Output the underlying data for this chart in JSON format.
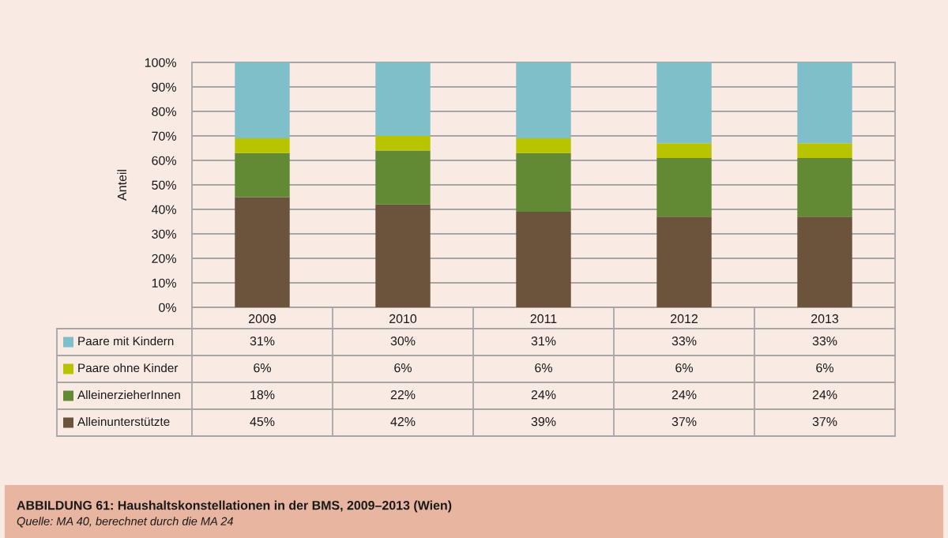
{
  "chart_data": {
    "type": "bar",
    "stacked": true,
    "title": "ABBILDUNG 61: Haushaltskonstellationen in der BMS, 2009–2013 (Wien)",
    "ylabel": "Anteil",
    "annotations": [
      "Quelle: MA 40, berechnet durch die MA 24"
    ],
    "categories": [
      "2009",
      "2010",
      "2011",
      "2012",
      "2013"
    ],
    "series": [
      {
        "name": "Alleinunterstützte",
        "color": "#6b543b",
        "values": [
          45,
          42,
          39,
          37,
          37
        ],
        "value_labels": [
          "45%",
          "42%",
          "39%",
          "37%",
          "37%"
        ]
      },
      {
        "name": "AlleinerzieherInnen",
        "color": "#628a35",
        "values": [
          18,
          22,
          24,
          24,
          24
        ],
        "value_labels": [
          "18%",
          "22%",
          "24%",
          "24%",
          "24%"
        ]
      },
      {
        "name": "Paare ohne Kinder",
        "color": "#b9c400",
        "values": [
          6,
          6,
          6,
          6,
          6
        ],
        "value_labels": [
          "6%",
          "6%",
          "6%",
          "6%",
          "6%"
        ]
      },
      {
        "name": "Paare mit Kindern",
        "color": "#7fbfca",
        "values": [
          31,
          30,
          31,
          33,
          33
        ],
        "value_labels": [
          "31%",
          "30%",
          "31%",
          "33%",
          "33%"
        ]
      }
    ],
    "ylim": [
      0,
      100
    ],
    "yticks": [
      {
        "value": 0,
        "label": "0%"
      },
      {
        "value": 10,
        "label": "10%"
      },
      {
        "value": 20,
        "label": "20%"
      },
      {
        "value": 30,
        "label": "30%"
      },
      {
        "value": 40,
        "label": "40%"
      },
      {
        "value": 50,
        "label": "50%"
      },
      {
        "value": 60,
        "label": "60%"
      },
      {
        "value": 70,
        "label": "70%"
      },
      {
        "value": 80,
        "label": "80%"
      },
      {
        "value": 90,
        "label": "90%"
      },
      {
        "value": 100,
        "label": "100%"
      }
    ],
    "grid": "y",
    "legend": "bottom"
  }
}
